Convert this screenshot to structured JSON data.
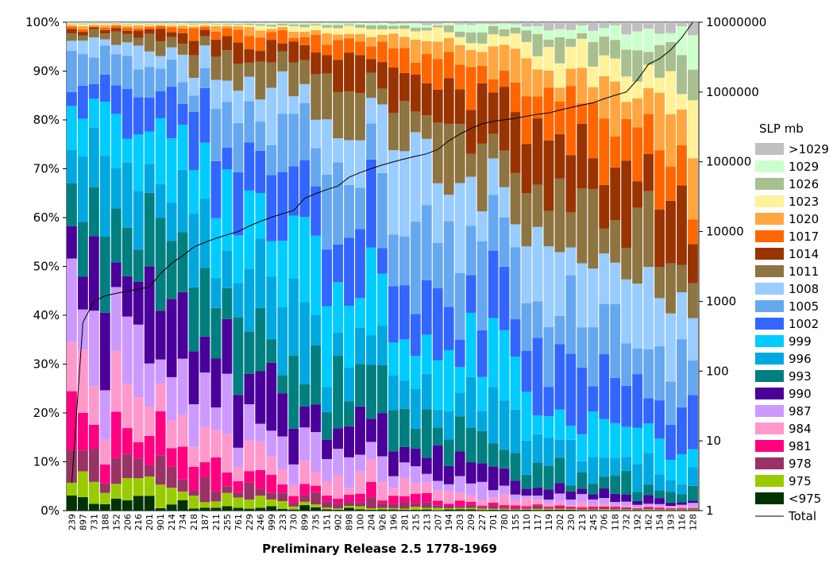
{
  "chart_data": {
    "type": "bar",
    "stacked": true,
    "normalized": true,
    "xlabel": "Preliminary Release 2.5 1778-1969",
    "left_axis_ticks": [
      "0%",
      "10%",
      "20%",
      "30%",
      "40%",
      "50%",
      "60%",
      "70%",
      "80%",
      "90%",
      "100%"
    ],
    "right_axis_ticks": [
      "1",
      "10",
      "100",
      "1000",
      "10000",
      "100000",
      "1000000",
      "10000000"
    ],
    "right_axis_scale": "log",
    "right_axis_range": [
      1,
      10000000
    ],
    "legend_title": "SLP mb",
    "legend_position": "right",
    "categories": [
      "239",
      "897",
      "731",
      "188",
      "152",
      "206",
      "216",
      "201",
      "901",
      "214",
      "734",
      "218",
      "187",
      "211",
      "255",
      "761",
      "229",
      "246",
      "999",
      "233",
      "730",
      "899",
      "735",
      "151",
      "902",
      "898",
      "100",
      "204",
      "926",
      "196",
      "281",
      "215",
      "213",
      "207",
      "194",
      "203",
      "209",
      "227",
      "701",
      "780",
      "155",
      "110",
      "117",
      "119",
      "202",
      "230",
      "213",
      "245",
      "706",
      "118",
      "732",
      "192",
      "162",
      "154",
      "193",
      "116",
      "128"
    ],
    "series_legend": [
      {
        "label": ">1029",
        "color": "#c0c0c0"
      },
      {
        "label": "1029",
        "color": "#ccffcc"
      },
      {
        "label": "1026",
        "color": "#a8c090"
      },
      {
        "label": "1023",
        "color": "#fff29a"
      },
      {
        "label": "1020",
        "color": "#ffa640"
      },
      {
        "label": "1017",
        "color": "#ff6600"
      },
      {
        "label": "1014",
        "color": "#993300"
      },
      {
        "label": "1011",
        "color": "#8e7440"
      },
      {
        "label": "1008",
        "color": "#99ccff"
      },
      {
        "label": "1005",
        "color": "#66a8f0"
      },
      {
        "label": "1002",
        "color": "#3366ff"
      },
      {
        "label": "999",
        "color": "#00ccff"
      },
      {
        "label": "996",
        "color": "#00a8e0"
      },
      {
        "label": "993",
        "color": "#007f80"
      },
      {
        "label": "990",
        "color": "#4b0099"
      },
      {
        "label": "987",
        "color": "#cc99ff"
      },
      {
        "label": "984",
        "color": "#ff99cc"
      },
      {
        "label": "981",
        "color": "#ff0080"
      },
      {
        "label": "978",
        "color": "#993366"
      },
      {
        "label": "975",
        "color": "#99cc00"
      },
      {
        "label": "<975",
        "color": "#003300"
      },
      {
        "label": "Total",
        "color": "#000000"
      }
    ],
    "stack_order_bottom_to_top": [
      "<975",
      "975",
      "978",
      "981",
      "984",
      "987",
      "990",
      "993",
      "996",
      "999",
      "1002",
      "1005",
      "1008",
      "1011",
      "1014",
      "1017",
      "1020",
      "1023",
      "1026",
      "1029",
      ">1029"
    ],
    "total_series_log": [
      2.5,
      500,
      1000,
      1200,
      1300,
      1400,
      1500,
      1600,
      2500,
      3500,
      4500,
      6000,
      7000,
      8000,
      9000,
      10000,
      12000,
      14000,
      16000,
      18000,
      20000,
      30000,
      35000,
      40000,
      45000,
      60000,
      70000,
      80000,
      90000,
      100000,
      110000,
      120000,
      130000,
      150000,
      200000,
      250000,
      300000,
      350000,
      380000,
      400000,
      420000,
      450000,
      480000,
      500000,
      550000,
      600000,
      650000,
      700000,
      800000,
      900000,
      1000000,
      1500000,
      2500000,
      3000000,
      4000000,
      6000000,
      10000000
    ]
  }
}
